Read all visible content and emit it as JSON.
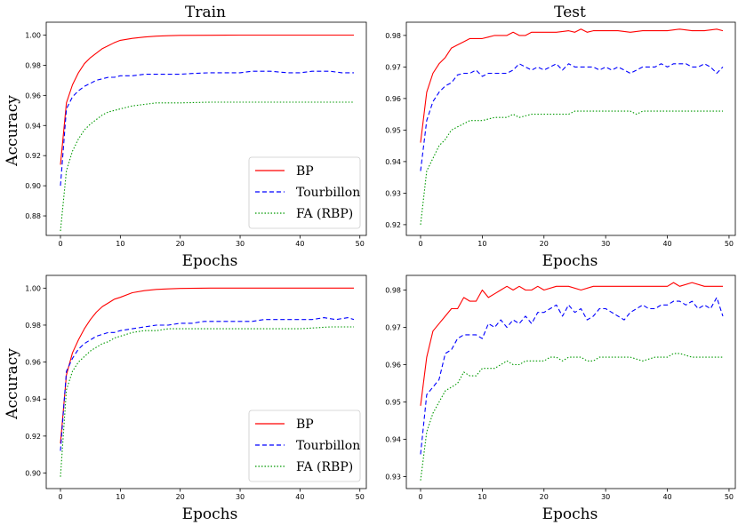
{
  "figure": {
    "col_titles": [
      "Train",
      "Test"
    ],
    "x_label": "Epochs",
    "y_label": "Accuracy"
  },
  "colors": {
    "BP": "#ff0000",
    "Tourbillon": "#0000ff",
    "FA (RBP)": "#009900"
  },
  "chart_data": [
    {
      "type": "line",
      "title": "Train",
      "xlabel": "Epochs",
      "ylabel": "Accuracy",
      "xlim": [
        0,
        49
      ],
      "ylim": [
        0.87,
        1.005
      ],
      "xticks": [
        0,
        10,
        20,
        30,
        40,
        50
      ],
      "yticks": [
        0.88,
        0.9,
        0.92,
        0.94,
        0.96,
        0.98,
        1.0
      ],
      "ytick_labels": [
        "0.88",
        "0.90",
        "0.92",
        "0.94",
        "0.96",
        "0.98",
        "1.00"
      ],
      "legend": {
        "position": "lower-right",
        "entries": [
          "BP",
          "Tourbillon",
          "FA (RBP)"
        ]
      },
      "series": [
        {
          "name": "BP",
          "x": [
            0,
            1,
            2,
            3,
            4,
            5,
            6,
            7,
            8,
            9,
            10,
            12,
            14,
            16,
            18,
            20,
            25,
            30,
            35,
            40,
            45,
            49
          ],
          "y": [
            0.914,
            0.955,
            0.967,
            0.975,
            0.981,
            0.985,
            0.988,
            0.991,
            0.993,
            0.995,
            0.9965,
            0.9978,
            0.9987,
            0.9993,
            0.9996,
            0.9998,
            0.9999,
            1.0,
            1.0,
            1.0,
            1.0,
            1.0
          ]
        },
        {
          "name": "Tourbillon",
          "x": [
            0,
            1,
            2,
            3,
            4,
            5,
            6,
            7,
            8,
            9,
            10,
            12,
            14,
            16,
            18,
            20,
            22,
            25,
            28,
            30,
            32,
            35,
            38,
            40,
            42,
            45,
            47,
            49
          ],
          "y": [
            0.9,
            0.951,
            0.959,
            0.963,
            0.966,
            0.968,
            0.97,
            0.971,
            0.972,
            0.972,
            0.973,
            0.973,
            0.974,
            0.974,
            0.974,
            0.974,
            0.9745,
            0.975,
            0.975,
            0.975,
            0.976,
            0.976,
            0.975,
            0.975,
            0.976,
            0.976,
            0.975,
            0.975
          ]
        },
        {
          "name": "FA (RBP)",
          "x": [
            0,
            1,
            2,
            3,
            4,
            5,
            6,
            7,
            8,
            9,
            10,
            12,
            14,
            16,
            18,
            20,
            25,
            30,
            35,
            40,
            45,
            49
          ],
          "y": [
            0.87,
            0.91,
            0.923,
            0.931,
            0.937,
            0.941,
            0.944,
            0.947,
            0.949,
            0.95,
            0.951,
            0.953,
            0.954,
            0.955,
            0.955,
            0.955,
            0.9555,
            0.9555,
            0.9555,
            0.9555,
            0.9555,
            0.9555
          ]
        }
      ]
    },
    {
      "type": "line",
      "title": "Test",
      "xlabel": "Epochs",
      "ylabel": "",
      "xlim": [
        0,
        49
      ],
      "ylim": [
        0.918,
        0.9825
      ],
      "xticks": [
        0,
        10,
        20,
        30,
        40,
        50
      ],
      "yticks": [
        0.92,
        0.93,
        0.94,
        0.95,
        0.96,
        0.97,
        0.98
      ],
      "ytick_labels": [
        "0.92",
        "0.93",
        "0.94",
        "0.95",
        "0.96",
        "0.97",
        "0.98"
      ],
      "series": [
        {
          "name": "BP",
          "x": [
            0,
            1,
            2,
            3,
            4,
            5,
            6,
            7,
            8,
            9,
            10,
            11,
            12,
            13,
            14,
            15,
            16,
            17,
            18,
            19,
            20,
            22,
            24,
            25,
            26,
            27,
            28,
            30,
            32,
            34,
            36,
            38,
            40,
            42,
            44,
            46,
            48,
            49
          ],
          "y": [
            0.946,
            0.962,
            0.968,
            0.971,
            0.973,
            0.976,
            0.977,
            0.978,
            0.979,
            0.979,
            0.979,
            0.9795,
            0.98,
            0.98,
            0.98,
            0.981,
            0.98,
            0.98,
            0.981,
            0.981,
            0.981,
            0.981,
            0.9815,
            0.981,
            0.982,
            0.981,
            0.9815,
            0.9815,
            0.9815,
            0.981,
            0.9815,
            0.9815,
            0.9815,
            0.982,
            0.9815,
            0.9815,
            0.982,
            0.9815
          ]
        },
        {
          "name": "Tourbillon",
          "x": [
            0,
            1,
            2,
            3,
            4,
            5,
            6,
            7,
            8,
            9,
            10,
            11,
            12,
            13,
            14,
            15,
            16,
            17,
            18,
            19,
            20,
            21,
            22,
            23,
            24,
            25,
            26,
            27,
            28,
            29,
            30,
            31,
            32,
            33,
            34,
            35,
            36,
            37,
            38,
            39,
            40,
            41,
            42,
            43,
            44,
            45,
            46,
            47,
            48,
            49
          ],
          "y": [
            0.937,
            0.953,
            0.959,
            0.962,
            0.964,
            0.965,
            0.9675,
            0.968,
            0.968,
            0.969,
            0.967,
            0.968,
            0.968,
            0.968,
            0.968,
            0.969,
            0.971,
            0.97,
            0.969,
            0.97,
            0.969,
            0.97,
            0.971,
            0.969,
            0.971,
            0.97,
            0.97,
            0.97,
            0.97,
            0.969,
            0.97,
            0.969,
            0.97,
            0.969,
            0.968,
            0.969,
            0.97,
            0.97,
            0.97,
            0.971,
            0.97,
            0.971,
            0.971,
            0.971,
            0.97,
            0.97,
            0.971,
            0.97,
            0.968,
            0.97
          ]
        },
        {
          "name": "FA (RBP)",
          "x": [
            0,
            1,
            2,
            3,
            4,
            5,
            6,
            7,
            8,
            9,
            10,
            12,
            14,
            15,
            16,
            18,
            20,
            22,
            24,
            25,
            26,
            28,
            30,
            32,
            34,
            35,
            36,
            38,
            40,
            42,
            44,
            46,
            48,
            49
          ],
          "y": [
            0.92,
            0.937,
            0.941,
            0.945,
            0.947,
            0.95,
            0.951,
            0.952,
            0.953,
            0.953,
            0.953,
            0.954,
            0.954,
            0.955,
            0.954,
            0.955,
            0.955,
            0.955,
            0.955,
            0.956,
            0.956,
            0.956,
            0.956,
            0.956,
            0.956,
            0.955,
            0.956,
            0.956,
            0.956,
            0.956,
            0.956,
            0.956,
            0.956,
            0.956
          ]
        }
      ]
    },
    {
      "type": "line",
      "title": "",
      "xlabel": "Epochs",
      "ylabel": "Accuracy",
      "xlim": [
        0,
        49
      ],
      "ylim": [
        0.894,
        1.004
      ],
      "xticks": [
        0,
        10,
        20,
        30,
        40,
        50
      ],
      "yticks": [
        0.9,
        0.92,
        0.94,
        0.96,
        0.98,
        1.0
      ],
      "ytick_labels": [
        "0.90",
        "0.92",
        "0.94",
        "0.96",
        "0.98",
        "1.00"
      ],
      "legend": {
        "position": "lower-right",
        "entries": [
          "BP",
          "Tourbillon",
          "FA (RBP)"
        ]
      },
      "series": [
        {
          "name": "BP",
          "x": [
            0,
            1,
            2,
            3,
            4,
            5,
            6,
            7,
            8,
            9,
            10,
            12,
            14,
            16,
            18,
            20,
            25,
            30,
            35,
            40,
            45,
            49
          ],
          "y": [
            0.916,
            0.953,
            0.965,
            0.972,
            0.978,
            0.983,
            0.987,
            0.99,
            0.992,
            0.994,
            0.995,
            0.9975,
            0.9986,
            0.9993,
            0.9996,
            0.9998,
            1.0,
            1.0,
            1.0,
            1.0,
            1.0,
            1.0
          ]
        },
        {
          "name": "Tourbillon",
          "x": [
            0,
            1,
            2,
            3,
            4,
            5,
            6,
            7,
            8,
            9,
            10,
            12,
            14,
            16,
            18,
            20,
            22,
            24,
            26,
            28,
            30,
            32,
            34,
            36,
            38,
            40,
            42,
            44,
            46,
            48,
            49
          ],
          "y": [
            0.912,
            0.955,
            0.962,
            0.967,
            0.97,
            0.972,
            0.974,
            0.975,
            0.976,
            0.976,
            0.977,
            0.978,
            0.979,
            0.98,
            0.98,
            0.981,
            0.981,
            0.982,
            0.982,
            0.982,
            0.982,
            0.982,
            0.983,
            0.983,
            0.983,
            0.983,
            0.983,
            0.984,
            0.983,
            0.984,
            0.983
          ]
        },
        {
          "name": "FA (RBP)",
          "x": [
            0,
            1,
            2,
            3,
            4,
            5,
            6,
            7,
            8,
            9,
            10,
            12,
            14,
            16,
            18,
            20,
            25,
            30,
            35,
            40,
            45,
            49
          ],
          "y": [
            0.898,
            0.945,
            0.955,
            0.96,
            0.963,
            0.966,
            0.968,
            0.97,
            0.971,
            0.973,
            0.974,
            0.976,
            0.977,
            0.977,
            0.978,
            0.978,
            0.978,
            0.978,
            0.978,
            0.978,
            0.979,
            0.979
          ]
        }
      ]
    },
    {
      "type": "line",
      "title": "",
      "xlabel": "Epochs",
      "ylabel": "",
      "xlim": [
        0,
        49
      ],
      "ylim": [
        0.928,
        0.9825
      ],
      "xticks": [
        0,
        10,
        20,
        30,
        40,
        50
      ],
      "yticks": [
        0.93,
        0.94,
        0.95,
        0.96,
        0.97,
        0.98
      ],
      "ytick_labels": [
        "0.93",
        "0.94",
        "0.95",
        "0.96",
        "0.97",
        "0.98"
      ],
      "series": [
        {
          "name": "BP",
          "x": [
            0,
            1,
            2,
            3,
            4,
            5,
            6,
            7,
            8,
            9,
            10,
            11,
            12,
            13,
            14,
            15,
            16,
            17,
            18,
            19,
            20,
            22,
            24,
            26,
            28,
            30,
            32,
            34,
            36,
            38,
            40,
            41,
            42,
            44,
            46,
            48,
            49
          ],
          "y": [
            0.949,
            0.962,
            0.969,
            0.971,
            0.973,
            0.975,
            0.975,
            0.978,
            0.977,
            0.977,
            0.98,
            0.978,
            0.979,
            0.98,
            0.981,
            0.98,
            0.981,
            0.98,
            0.98,
            0.981,
            0.98,
            0.981,
            0.981,
            0.98,
            0.981,
            0.981,
            0.981,
            0.981,
            0.981,
            0.981,
            0.981,
            0.982,
            0.981,
            0.982,
            0.981,
            0.981,
            0.981
          ]
        },
        {
          "name": "Tourbillon",
          "x": [
            0,
            1,
            2,
            3,
            4,
            5,
            6,
            7,
            8,
            9,
            10,
            11,
            12,
            13,
            14,
            15,
            16,
            17,
            18,
            19,
            20,
            21,
            22,
            23,
            24,
            25,
            26,
            27,
            28,
            29,
            30,
            31,
            32,
            33,
            34,
            35,
            36,
            37,
            38,
            39,
            40,
            41,
            42,
            43,
            44,
            45,
            46,
            47,
            48,
            49
          ],
          "y": [
            0.936,
            0.952,
            0.954,
            0.956,
            0.963,
            0.964,
            0.967,
            0.968,
            0.968,
            0.968,
            0.967,
            0.971,
            0.97,
            0.972,
            0.97,
            0.972,
            0.971,
            0.973,
            0.971,
            0.974,
            0.974,
            0.975,
            0.976,
            0.973,
            0.976,
            0.974,
            0.975,
            0.972,
            0.973,
            0.975,
            0.975,
            0.974,
            0.973,
            0.972,
            0.974,
            0.975,
            0.976,
            0.975,
            0.975,
            0.976,
            0.976,
            0.977,
            0.977,
            0.976,
            0.977,
            0.975,
            0.976,
            0.975,
            0.978,
            0.973
          ]
        },
        {
          "name": "FA (RBP)",
          "x": [
            0,
            1,
            2,
            3,
            4,
            5,
            6,
            7,
            8,
            9,
            10,
            11,
            12,
            13,
            14,
            15,
            16,
            17,
            18,
            19,
            20,
            21,
            22,
            23,
            24,
            25,
            26,
            27,
            28,
            29,
            30,
            32,
            34,
            36,
            38,
            40,
            41,
            42,
            44,
            46,
            48,
            49
          ],
          "y": [
            0.929,
            0.942,
            0.947,
            0.95,
            0.953,
            0.954,
            0.955,
            0.958,
            0.957,
            0.957,
            0.959,
            0.959,
            0.959,
            0.96,
            0.961,
            0.96,
            0.96,
            0.961,
            0.961,
            0.961,
            0.961,
            0.962,
            0.962,
            0.961,
            0.962,
            0.962,
            0.962,
            0.961,
            0.961,
            0.962,
            0.962,
            0.962,
            0.962,
            0.961,
            0.962,
            0.962,
            0.963,
            0.963,
            0.962,
            0.962,
            0.962,
            0.962
          ]
        }
      ]
    }
  ]
}
